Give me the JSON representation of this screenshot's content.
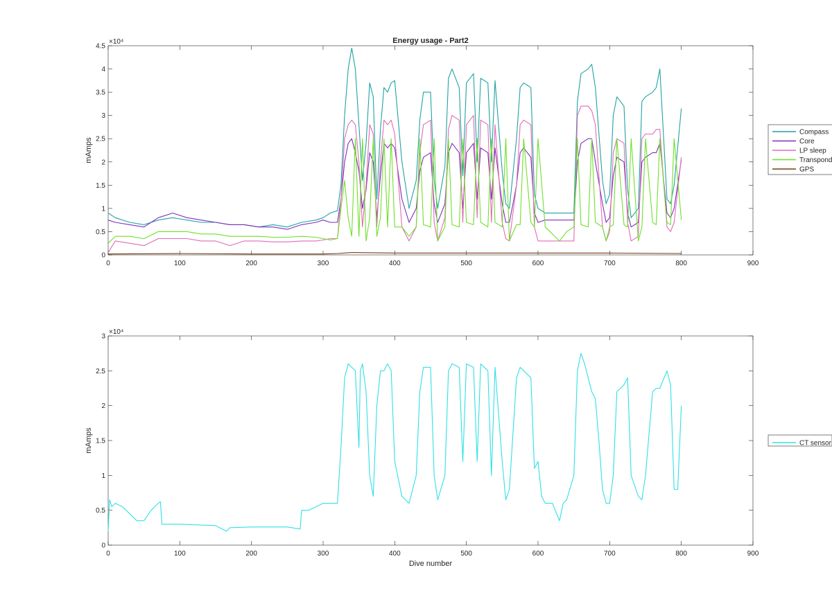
{
  "chart_data": [
    {
      "type": "line",
      "title": "Energy usage - Part2",
      "xlabel": "",
      "ylabel": "mAmps",
      "exponent_label": "×10⁴",
      "xlim": [
        0,
        900
      ],
      "ylim": [
        0,
        45000
      ],
      "xticks": [
        0,
        100,
        200,
        300,
        400,
        500,
        600,
        700,
        800,
        900
      ],
      "yticks": [
        0,
        5000,
        10000,
        15000,
        20000,
        25000,
        30000,
        35000,
        40000,
        45000
      ],
      "ytick_labels": [
        "0",
        "0.5",
        "1",
        "1.5",
        "2",
        "2.5",
        "3",
        "3.5",
        "4",
        "4.5"
      ],
      "grid": false,
      "legend_position": "outside-right",
      "series": [
        {
          "name": "Compass",
          "color": "#1fa2a2",
          "x": [
            0,
            10,
            30,
            50,
            70,
            90,
            110,
            130,
            150,
            170,
            190,
            210,
            230,
            250,
            270,
            290,
            300,
            310,
            320,
            325,
            330,
            335,
            340,
            345,
            350,
            355,
            360,
            365,
            370,
            375,
            380,
            385,
            390,
            395,
            400,
            410,
            420,
            430,
            435,
            440,
            450,
            455,
            460,
            470,
            475,
            480,
            490,
            495,
            500,
            510,
            515,
            520,
            530,
            535,
            540,
            550,
            555,
            560,
            570,
            575,
            580,
            590,
            595,
            600,
            610,
            630,
            640,
            650,
            655,
            660,
            670,
            675,
            680,
            690,
            695,
            700,
            705,
            710,
            720,
            725,
            730,
            740,
            745,
            750,
            760,
            765,
            770,
            780,
            785,
            790,
            800
          ],
          "y": [
            9000,
            8000,
            7000,
            6500,
            7500,
            8000,
            7500,
            7000,
            7000,
            6500,
            6500,
            6000,
            6500,
            6000,
            7000,
            7500,
            8000,
            9000,
            9500,
            15000,
            30000,
            40000,
            44500,
            40000,
            28000,
            16000,
            24000,
            37000,
            34000,
            12000,
            27000,
            36000,
            35000,
            37000,
            37500,
            20000,
            10000,
            16000,
            29000,
            35000,
            35000,
            16000,
            10000,
            19000,
            38000,
            40000,
            36000,
            17000,
            37000,
            39000,
            20000,
            38000,
            37000,
            20000,
            37500,
            18000,
            11000,
            10000,
            25000,
            36000,
            37000,
            36000,
            13000,
            10000,
            9000,
            9000,
            9000,
            9000,
            33000,
            39000,
            40000,
            41000,
            36000,
            16000,
            11000,
            13000,
            30000,
            34000,
            32000,
            14000,
            8000,
            10000,
            33000,
            34000,
            35000,
            36000,
            40000,
            12000,
            11000,
            15000,
            31500
          ]
        },
        {
          "name": "Core",
          "color": "#7e2fbd",
          "x": [
            0,
            10,
            30,
            50,
            70,
            90,
            110,
            130,
            150,
            170,
            190,
            210,
            230,
            250,
            270,
            290,
            300,
            310,
            320,
            325,
            330,
            335,
            340,
            345,
            350,
            355,
            360,
            365,
            370,
            375,
            380,
            385,
            390,
            395,
            400,
            410,
            420,
            430,
            435,
            440,
            450,
            455,
            460,
            470,
            475,
            480,
            490,
            495,
            500,
            510,
            515,
            520,
            530,
            535,
            540,
            550,
            555,
            560,
            570,
            575,
            580,
            590,
            595,
            600,
            610,
            630,
            640,
            650,
            655,
            660,
            670,
            675,
            680,
            690,
            695,
            700,
            705,
            710,
            720,
            725,
            730,
            740,
            745,
            750,
            760,
            765,
            770,
            780,
            785,
            790,
            800
          ],
          "y": [
            7500,
            7000,
            6500,
            6000,
            8000,
            9000,
            8000,
            7500,
            7000,
            6500,
            6500,
            6000,
            6000,
            5500,
            6500,
            7000,
            7500,
            7000,
            7000,
            12000,
            20000,
            24000,
            25000,
            22000,
            18000,
            10000,
            14000,
            22000,
            20000,
            8000,
            17000,
            24000,
            23000,
            24000,
            23000,
            12000,
            7000,
            10000,
            18000,
            21000,
            22000,
            11000,
            7000,
            11000,
            22000,
            24000,
            22000,
            10000,
            22000,
            24000,
            12000,
            23000,
            22000,
            12000,
            23000,
            11000,
            7000,
            7000,
            15000,
            22000,
            23000,
            21000,
            9000,
            7000,
            7500,
            7500,
            7500,
            7500,
            20000,
            24000,
            25000,
            25000,
            20000,
            11000,
            7000,
            8000,
            17000,
            21000,
            20000,
            9000,
            6000,
            7000,
            20000,
            21000,
            22000,
            22000,
            24000,
            9000,
            8000,
            10000,
            20500
          ]
        },
        {
          "name": "LP sleep",
          "color": "#e06bb5",
          "x": [
            0,
            10,
            30,
            50,
            70,
            90,
            110,
            130,
            150,
            170,
            190,
            210,
            230,
            250,
            270,
            290,
            300,
            310,
            320,
            325,
            330,
            335,
            340,
            345,
            350,
            355,
            360,
            365,
            370,
            375,
            380,
            385,
            390,
            395,
            400,
            410,
            420,
            430,
            435,
            440,
            450,
            455,
            460,
            470,
            475,
            480,
            490,
            495,
            500,
            510,
            515,
            520,
            530,
            535,
            540,
            550,
            555,
            560,
            570,
            575,
            580,
            590,
            595,
            600,
            610,
            630,
            640,
            650,
            655,
            660,
            670,
            675,
            680,
            690,
            695,
            700,
            705,
            710,
            720,
            725,
            730,
            740,
            745,
            750,
            760,
            765,
            770,
            780,
            785,
            790,
            800
          ],
          "y": [
            500,
            3000,
            2500,
            2000,
            3500,
            3500,
            3500,
            3000,
            3000,
            2000,
            3000,
            3000,
            2800,
            2800,
            3000,
            3000,
            3200,
            3500,
            3500,
            12000,
            25000,
            28000,
            29000,
            28000,
            20000,
            6000,
            15000,
            28000,
            26000,
            6000,
            20000,
            29000,
            28000,
            29000,
            26000,
            6000,
            3000,
            6000,
            22000,
            28000,
            29000,
            7000,
            3000,
            8000,
            27000,
            30000,
            29000,
            7000,
            28000,
            30000,
            8000,
            29000,
            28000,
            7000,
            28000,
            7000,
            3500,
            3000,
            15000,
            28000,
            29000,
            28000,
            6000,
            3000,
            3000,
            3000,
            3000,
            3000,
            30000,
            32000,
            32000,
            31000,
            28000,
            6000,
            3000,
            5000,
            22000,
            25000,
            24000,
            7000,
            3000,
            4000,
            25000,
            26000,
            26000,
            27000,
            27000,
            6000,
            5000,
            7000,
            21000
          ]
        },
        {
          "name": "Transponder",
          "color": "#6ee02a",
          "x": [
            0,
            10,
            30,
            50,
            70,
            90,
            110,
            130,
            150,
            170,
            190,
            210,
            230,
            250,
            270,
            290,
            300,
            310,
            320,
            325,
            330,
            335,
            340,
            345,
            350,
            355,
            360,
            365,
            370,
            375,
            380,
            385,
            390,
            395,
            400,
            410,
            420,
            430,
            435,
            440,
            450,
            455,
            460,
            470,
            475,
            480,
            490,
            495,
            500,
            510,
            515,
            520,
            530,
            535,
            540,
            550,
            555,
            560,
            570,
            575,
            580,
            590,
            595,
            600,
            610,
            630,
            640,
            650,
            655,
            660,
            670,
            675,
            680,
            690,
            695,
            700,
            705,
            710,
            720,
            725,
            730,
            740,
            745,
            750,
            760,
            765,
            770,
            780,
            785,
            790,
            800
          ],
          "y": [
            2500,
            4000,
            4000,
            3500,
            5000,
            5000,
            5000,
            4500,
            4500,
            4000,
            4000,
            4000,
            3800,
            3800,
            4000,
            3800,
            3500,
            3200,
            3500,
            10000,
            16000,
            8000,
            4000,
            25000,
            4000,
            25000,
            3000,
            8000,
            25000,
            4000,
            8000,
            25000,
            6000,
            25000,
            6000,
            6000,
            4000,
            6000,
            25000,
            6500,
            6000,
            25000,
            3000,
            6000,
            25000,
            6500,
            6000,
            25000,
            7000,
            6500,
            25000,
            7000,
            6000,
            25000,
            7000,
            6000,
            25000,
            3000,
            6500,
            6500,
            25000,
            7000,
            6000,
            25000,
            6000,
            3000,
            5000,
            6000,
            25000,
            6500,
            6000,
            25000,
            7000,
            6000,
            3000,
            6000,
            6500,
            25000,
            6500,
            6000,
            25000,
            3000,
            6000,
            25000,
            7000,
            6500,
            25000,
            7000,
            6500,
            25000,
            7500
          ]
        },
        {
          "name": "GPS",
          "color": "#7a3a12",
          "x": [
            0,
            100,
            200,
            300,
            320,
            340,
            400,
            500,
            600,
            700,
            800
          ],
          "y": [
            200,
            300,
            200,
            200,
            300,
            500,
            400,
            400,
            400,
            400,
            300
          ]
        }
      ]
    },
    {
      "type": "line",
      "title": "",
      "xlabel": "Dive number",
      "ylabel": "mAmps",
      "exponent_label": "×10⁴",
      "xlim": [
        0,
        900
      ],
      "ylim": [
        0,
        30000
      ],
      "xticks": [
        0,
        100,
        200,
        300,
        400,
        500,
        600,
        700,
        800,
        900
      ],
      "yticks": [
        0,
        5000,
        10000,
        15000,
        20000,
        25000,
        30000
      ],
      "ytick_labels": [
        "0",
        "0.5",
        "1",
        "1.5",
        "2",
        "2.5",
        "3"
      ],
      "grid": false,
      "legend_position": "outside-right",
      "series": [
        {
          "name": "CT sensor",
          "color": "#2fe0e6",
          "x": [
            0,
            2,
            5,
            10,
            20,
            30,
            40,
            50,
            60,
            70,
            73,
            75,
            80,
            100,
            150,
            165,
            170,
            200,
            250,
            268,
            270,
            280,
            290,
            300,
            310,
            320,
            325,
            330,
            335,
            340,
            345,
            350,
            352,
            355,
            360,
            365,
            370,
            375,
            380,
            385,
            390,
            395,
            400,
            410,
            420,
            430,
            435,
            440,
            450,
            455,
            460,
            470,
            475,
            480,
            490,
            495,
            500,
            510,
            515,
            520,
            530,
            535,
            540,
            550,
            555,
            560,
            570,
            575,
            580,
            590,
            595,
            600,
            605,
            610,
            620,
            630,
            635,
            640,
            650,
            655,
            660,
            665,
            670,
            675,
            680,
            685,
            690,
            695,
            700,
            705,
            710,
            720,
            725,
            730,
            740,
            745,
            750,
            760,
            765,
            770,
            780,
            785,
            790,
            795,
            800
          ],
          "y": [
            2000,
            6500,
            5500,
            6000,
            5500,
            4500,
            3500,
            3500,
            5000,
            6000,
            6200,
            3000,
            3000,
            3000,
            2800,
            2000,
            2500,
            2600,
            2600,
            2300,
            5000,
            5000,
            5500,
            6000,
            6000,
            6000,
            14000,
            24000,
            26000,
            25500,
            25000,
            14000,
            25000,
            26000,
            22000,
            10000,
            7000,
            20000,
            25000,
            25000,
            26000,
            25000,
            12000,
            7000,
            6000,
            10000,
            22000,
            25500,
            25500,
            10000,
            6500,
            10000,
            25000,
            26000,
            25500,
            12000,
            26000,
            25500,
            12000,
            26000,
            25000,
            10000,
            25500,
            12000,
            6500,
            8000,
            24000,
            25500,
            25000,
            24000,
            11000,
            12000,
            7000,
            6000,
            6000,
            3500,
            6000,
            6500,
            10000,
            25000,
            27500,
            26000,
            24000,
            22000,
            21000,
            15000,
            8000,
            6000,
            6000,
            10000,
            22000,
            23000,
            24000,
            10000,
            7000,
            6500,
            10000,
            22000,
            22500,
            22500,
            25000,
            23000,
            8000,
            8000,
            20000
          ]
        }
      ]
    }
  ]
}
